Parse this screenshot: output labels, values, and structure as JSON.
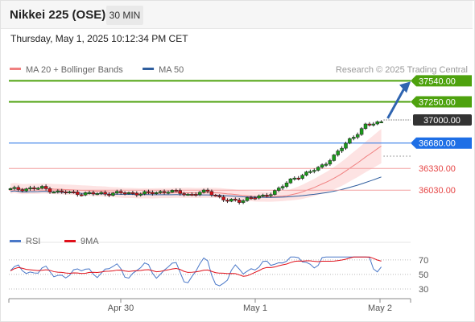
{
  "header": {
    "title": "Nikkei 225 (OSE)",
    "timeframe": "30 MIN",
    "timestamp": "Thursday, May 1, 2025 10:12:34 PM CET"
  },
  "chart_data": [
    {
      "type": "candlestick",
      "legend": [
        {
          "label": "MA 20 + Bollinger Bands",
          "color": "#f08080"
        },
        {
          "label": "MA 50",
          "color": "#2f5e9e"
        }
      ],
      "credit": "Research © 2025 Trading Central",
      "ylim": [
        35510,
        37900
      ],
      "x_ticks": [
        "Apr 30",
        "May 1",
        "May 2"
      ],
      "levels": [
        {
          "value": 37540,
          "label": "37540.00",
          "kind": "resistance",
          "color": "#4ea20e"
        },
        {
          "value": 37250,
          "label": "37250.00",
          "kind": "resistance",
          "color": "#4ea20e"
        },
        {
          "value": 37000,
          "label": "37000.00",
          "kind": "last",
          "color": "#333333"
        },
        {
          "value": 36680,
          "label": "36680.00",
          "kind": "pivot",
          "color": "#1e6fe6"
        },
        {
          "value": 36330,
          "label": "36330.00",
          "kind": "support",
          "color": "#e64545"
        },
        {
          "value": 36030,
          "label": "36030.00",
          "kind": "support",
          "color": "#e64545"
        }
      ],
      "forecast": {
        "from": 37000,
        "to": 37540
      }
    },
    {
      "type": "line",
      "legend": [
        {
          "label": "RSI",
          "color": "#4a78c8"
        },
        {
          "label": "9MA",
          "color": "#e0101a"
        }
      ],
      "ylim": [
        20,
        82
      ],
      "y_ticks": [
        70,
        50,
        30
      ]
    }
  ],
  "colors": {
    "up": "#1a9b1a",
    "down": "#d10f17",
    "bands": "#fde3e3"
  }
}
